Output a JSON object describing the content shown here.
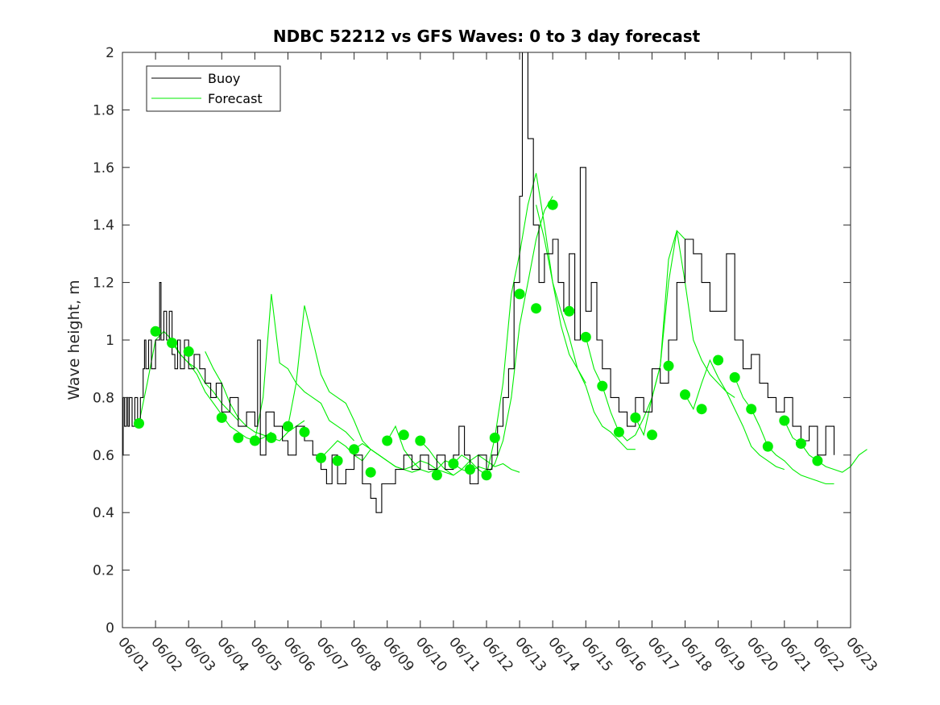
{
  "chart_data": {
    "type": "line",
    "title": "NDBC 52212 vs GFS Waves: 0 to 3 day forecast",
    "xlabel": "",
    "ylabel": "Wave height, m",
    "xlim": [
      "06/01",
      "06/23"
    ],
    "ylim": [
      0,
      2
    ],
    "grid": false,
    "legend_position": "top-left",
    "x_tick_labels": [
      "06/01",
      "06/02",
      "06/03",
      "06/04",
      "06/05",
      "06/06",
      "06/07",
      "06/08",
      "06/09",
      "06/10",
      "06/11",
      "06/12",
      "06/13",
      "06/14",
      "06/15",
      "06/16",
      "06/17",
      "06/18",
      "06/19",
      "06/20",
      "06/21",
      "06/22",
      "06/23"
    ],
    "y_tick_labels": [
      "0",
      "0.2",
      "0.4",
      "0.6",
      "0.8",
      "1",
      "1.2",
      "1.4",
      "1.6",
      "1.8",
      "2"
    ],
    "colors": {
      "buoy": "#000000",
      "forecast": "#00ee00"
    },
    "legend": [
      {
        "label": "Buoy",
        "color": "#000000"
      },
      {
        "label": "Forecast",
        "color": "#00ee00"
      }
    ],
    "buoy": {
      "name": "Buoy",
      "points": [
        [
          "06/01 00:00",
          0.6
        ],
        [
          "06/01 00:30",
          0.8
        ],
        [
          "06/01 01:30",
          0.7
        ],
        [
          "06/01 03:00",
          0.8
        ],
        [
          "06/01 04:00",
          0.7
        ],
        [
          "06/01 05:00",
          0.8
        ],
        [
          "06/01 07:00",
          0.7
        ],
        [
          "06/01 09:00",
          0.8
        ],
        [
          "06/01 11:00",
          0.7
        ],
        [
          "06/01 13:00",
          0.8
        ],
        [
          "06/01 15:00",
          0.9
        ],
        [
          "06/01 16:00",
          1.0
        ],
        [
          "06/01 17:00",
          0.9
        ],
        [
          "06/01 19:00",
          1.0
        ],
        [
          "06/01 21:00",
          0.9
        ],
        [
          "06/02 00:00",
          1.0
        ],
        [
          "06/02 03:00",
          1.2
        ],
        [
          "06/02 04:00",
          1.0
        ],
        [
          "06/02 06:00",
          1.1
        ],
        [
          "06/02 08:00",
          1.0
        ],
        [
          "06/02 10:00",
          1.1
        ],
        [
          "06/02 12:00",
          0.95
        ],
        [
          "06/02 14:00",
          0.9
        ],
        [
          "06/02 16:00",
          1.0
        ],
        [
          "06/02 18:00",
          0.9
        ],
        [
          "06/02 21:00",
          1.0
        ],
        [
          "06/03 00:00",
          0.9
        ],
        [
          "06/03 04:00",
          0.95
        ],
        [
          "06/03 08:00",
          0.9
        ],
        [
          "06/03 12:00",
          0.85
        ],
        [
          "06/03 16:00",
          0.8
        ],
        [
          "06/03 20:00",
          0.85
        ],
        [
          "06/04 00:00",
          0.75
        ],
        [
          "06/04 06:00",
          0.8
        ],
        [
          "06/04 12:00",
          0.7
        ],
        [
          "06/04 18:00",
          0.75
        ],
        [
          "06/05 00:00",
          0.7
        ],
        [
          "06/05 02:00",
          1.0
        ],
        [
          "06/05 04:00",
          0.6
        ],
        [
          "06/05 08:00",
          0.75
        ],
        [
          "06/05 14:00",
          0.7
        ],
        [
          "06/05 20:00",
          0.65
        ],
        [
          "06/06 00:00",
          0.6
        ],
        [
          "06/06 06:00",
          0.7
        ],
        [
          "06/06 12:00",
          0.65
        ],
        [
          "06/06 18:00",
          0.6
        ],
        [
          "06/07 00:00",
          0.55
        ],
        [
          "06/07 04:00",
          0.5
        ],
        [
          "06/07 08:00",
          0.6
        ],
        [
          "06/07 12:00",
          0.5
        ],
        [
          "06/07 18:00",
          0.55
        ],
        [
          "06/08 00:00",
          0.6
        ],
        [
          "06/08 06:00",
          0.5
        ],
        [
          "06/08 12:00",
          0.45
        ],
        [
          "06/08 16:00",
          0.4
        ],
        [
          "06/08 20:00",
          0.5
        ],
        [
          "06/09 00:00",
          0.5
        ],
        [
          "06/09 06:00",
          0.55
        ],
        [
          "06/09 12:00",
          0.6
        ],
        [
          "06/09 18:00",
          0.55
        ],
        [
          "06/10 00:00",
          0.6
        ],
        [
          "06/10 06:00",
          0.55
        ],
        [
          "06/10 12:00",
          0.6
        ],
        [
          "06/10 18:00",
          0.55
        ],
        [
          "06/11 00:00",
          0.6
        ],
        [
          "06/11 04:00",
          0.7
        ],
        [
          "06/11 08:00",
          0.6
        ],
        [
          "06/11 12:00",
          0.5
        ],
        [
          "06/11 18:00",
          0.6
        ],
        [
          "06/12 00:00",
          0.55
        ],
        [
          "06/12 04:00",
          0.6
        ],
        [
          "06/12 08:00",
          0.7
        ],
        [
          "06/12 12:00",
          0.8
        ],
        [
          "06/12 16:00",
          0.9
        ],
        [
          "06/12 20:00",
          1.2
        ],
        [
          "06/13 00:00",
          1.5
        ],
        [
          "06/13 02:00",
          2.0
        ],
        [
          "06/13 06:00",
          1.7
        ],
        [
          "06/13 10:00",
          1.4
        ],
        [
          "06/13 14:00",
          1.2
        ],
        [
          "06/13 18:00",
          1.3
        ],
        [
          "06/14 00:00",
          1.35
        ],
        [
          "06/14 04:00",
          1.2
        ],
        [
          "06/14 08:00",
          1.1
        ],
        [
          "06/14 12:00",
          1.3
        ],
        [
          "06/14 16:00",
          1.0
        ],
        [
          "06/14 20:00",
          1.6
        ],
        [
          "06/15 00:00",
          1.1
        ],
        [
          "06/15 04:00",
          1.2
        ],
        [
          "06/15 08:00",
          1.0
        ],
        [
          "06/15 12:00",
          0.9
        ],
        [
          "06/15 18:00",
          0.8
        ],
        [
          "06/16 00:00",
          0.75
        ],
        [
          "06/16 06:00",
          0.7
        ],
        [
          "06/16 12:00",
          0.8
        ],
        [
          "06/16 18:00",
          0.75
        ],
        [
          "06/17 00:00",
          0.9
        ],
        [
          "06/17 06:00",
          0.85
        ],
        [
          "06/17 12:00",
          1.0
        ],
        [
          "06/17 18:00",
          1.2
        ],
        [
          "06/18 00:00",
          1.35
        ],
        [
          "06/18 06:00",
          1.3
        ],
        [
          "06/18 12:00",
          1.2
        ],
        [
          "06/18 18:00",
          1.1
        ],
        [
          "06/19 00:00",
          1.1
        ],
        [
          "06/19 06:00",
          1.3
        ],
        [
          "06/19 12:00",
          1.0
        ],
        [
          "06/19 18:00",
          0.9
        ],
        [
          "06/20 00:00",
          0.95
        ],
        [
          "06/20 06:00",
          0.85
        ],
        [
          "06/20 12:00",
          0.8
        ],
        [
          "06/20 18:00",
          0.75
        ],
        [
          "06/21 00:00",
          0.8
        ],
        [
          "06/21 06:00",
          0.7
        ],
        [
          "06/21 12:00",
          0.65
        ],
        [
          "06/21 18:00",
          0.7
        ],
        [
          "06/22 00:00",
          0.6
        ],
        [
          "06/22 06:00",
          0.7
        ],
        [
          "06/22 12:00",
          0.6
        ]
      ]
    },
    "forecast": {
      "name": "Forecast",
      "runs": [
        {
          "start": "06/01 12:00",
          "values": [
            0.71,
            0.85,
            1.0,
            1.03,
            1.0,
            0.95,
            0.92,
            0.9,
            0.85,
            0.82,
            0.78,
            0.75,
            0.72
          ]
        },
        {
          "start": "06/02 12:00",
          "values": [
            0.99,
            0.95,
            0.92,
            0.88,
            0.82,
            0.78,
            0.74,
            0.7,
            0.68,
            0.66,
            0.65,
            0.66,
            0.68
          ]
        },
        {
          "start": "06/03 12:00",
          "values": [
            0.96,
            0.9,
            0.85,
            0.78,
            0.73,
            0.7,
            0.68,
            0.67,
            0.66,
            0.65,
            0.68,
            0.7,
            0.72
          ]
        },
        {
          "start": "06/05 00:00",
          "values": [
            0.65,
            0.8,
            1.16,
            0.92,
            0.9,
            0.85,
            0.82,
            0.8,
            0.78,
            0.72,
            0.7,
            0.68,
            0.65
          ]
        },
        {
          "start": "06/06 00:00",
          "values": [
            0.7,
            0.85,
            1.12,
            1.0,
            0.88,
            0.82,
            0.8,
            0.78,
            0.72,
            0.65,
            0.62,
            0.6,
            0.58
          ]
        },
        {
          "start": "06/07 00:00",
          "values": [
            0.59,
            0.62,
            0.65,
            0.63,
            0.6,
            0.58,
            0.62,
            0.6,
            0.58,
            0.56,
            0.55,
            0.54,
            0.55
          ]
        },
        {
          "start": "06/08 00:00",
          "values": [
            0.62,
            0.64,
            0.62,
            0.6,
            0.58,
            0.56,
            0.55,
            0.56,
            0.58,
            0.57,
            0.55,
            0.54,
            0.53
          ]
        },
        {
          "start": "06/09 00:00",
          "values": [
            0.65,
            0.7,
            0.62,
            0.58,
            0.55,
            0.54,
            0.55,
            0.58,
            0.57,
            0.55,
            0.54,
            0.56,
            0.55
          ]
        },
        {
          "start": "06/10 00:00",
          "values": [
            0.65,
            0.62,
            0.58,
            0.55,
            0.53,
            0.55,
            0.58,
            0.6,
            0.58,
            0.56,
            0.57,
            0.55,
            0.54
          ]
        },
        {
          "start": "06/11 00:00",
          "values": [
            0.57,
            0.6,
            0.58,
            0.55,
            0.53,
            0.57,
            0.65,
            0.8,
            1.05,
            1.2,
            1.35,
            1.45,
            1.5
          ]
        },
        {
          "start": "06/12 00:00",
          "values": [
            0.53,
            0.66,
            0.85,
            1.16,
            1.3,
            1.47,
            1.58,
            1.4,
            1.2,
            1.05,
            0.95,
            0.9,
            0.85
          ]
        },
        {
          "start": "06/13 12:00",
          "values": [
            1.47,
            1.35,
            1.2,
            1.1,
            1.01,
            0.9,
            0.84,
            0.75,
            0.7,
            0.68,
            0.65,
            0.62,
            0.62
          ]
        },
        {
          "start": "06/15 00:00",
          "values": [
            1.01,
            0.9,
            0.84,
            0.75,
            0.68,
            0.65,
            0.67,
            0.73,
            0.8,
            0.91,
            1.2,
            1.38,
            1.35
          ]
        },
        {
          "start": "06/16 12:00",
          "values": [
            0.73,
            0.67,
            0.8,
            0.91,
            1.28,
            1.38,
            1.2,
            1.0,
            0.93,
            0.88,
            0.85,
            0.82,
            0.8
          ]
        },
        {
          "start": "06/18 00:00",
          "values": [
            0.81,
            0.76,
            0.85,
            0.93,
            0.87,
            0.82,
            0.76,
            0.7,
            0.63,
            0.6,
            0.58,
            0.56,
            0.55
          ]
        },
        {
          "start": "06/19 12:00",
          "values": [
            0.87,
            0.8,
            0.76,
            0.7,
            0.63,
            0.6,
            0.58,
            0.55,
            0.53,
            0.52,
            0.51,
            0.5,
            0.5
          ]
        },
        {
          "start": "06/21 00:00",
          "values": [
            0.72,
            0.66,
            0.64,
            0.6,
            0.58,
            0.56,
            0.55,
            0.54,
            0.56,
            0.6,
            0.62
          ]
        }
      ]
    },
    "forecast_markers": [
      [
        "06/01 12:00",
        0.71
      ],
      [
        "06/02 00:00",
        1.03
      ],
      [
        "06/02 12:00",
        0.99
      ],
      [
        "06/03 00:00",
        0.96
      ],
      [
        "06/04 00:00",
        0.73
      ],
      [
        "06/04 12:00",
        0.66
      ],
      [
        "06/05 00:00",
        0.65
      ],
      [
        "06/05 12:00",
        0.66
      ],
      [
        "06/06 00:00",
        0.7
      ],
      [
        "06/06 12:00",
        0.68
      ],
      [
        "06/07 00:00",
        0.59
      ],
      [
        "06/07 12:00",
        0.58
      ],
      [
        "06/08 00:00",
        0.62
      ],
      [
        "06/08 12:00",
        0.54
      ],
      [
        "06/09 00:00",
        0.65
      ],
      [
        "06/09 12:00",
        0.67
      ],
      [
        "06/10 00:00",
        0.65
      ],
      [
        "06/10 12:00",
        0.53
      ],
      [
        "06/11 00:00",
        0.57
      ],
      [
        "06/11 12:00",
        0.55
      ],
      [
        "06/12 00:00",
        0.53
      ],
      [
        "06/12 06:00",
        0.66
      ],
      [
        "06/13 00:00",
        1.16
      ],
      [
        "06/13 12:00",
        1.11
      ],
      [
        "06/14 00:00",
        1.47
      ],
      [
        "06/14 12:00",
        1.1
      ],
      [
        "06/15 00:00",
        1.01
      ],
      [
        "06/15 12:00",
        0.84
      ],
      [
        "06/16 00:00",
        0.68
      ],
      [
        "06/16 12:00",
        0.73
      ],
      [
        "06/17 00:00",
        0.67
      ],
      [
        "06/17 12:00",
        0.91
      ],
      [
        "06/18 00:00",
        0.81
      ],
      [
        "06/18 12:00",
        0.76
      ],
      [
        "06/19 00:00",
        0.93
      ],
      [
        "06/19 12:00",
        0.87
      ],
      [
        "06/20 00:00",
        0.76
      ],
      [
        "06/20 12:00",
        0.63
      ],
      [
        "06/21 00:00",
        0.72
      ],
      [
        "06/21 12:00",
        0.64
      ],
      [
        "06/22 00:00",
        0.58
      ]
    ]
  }
}
